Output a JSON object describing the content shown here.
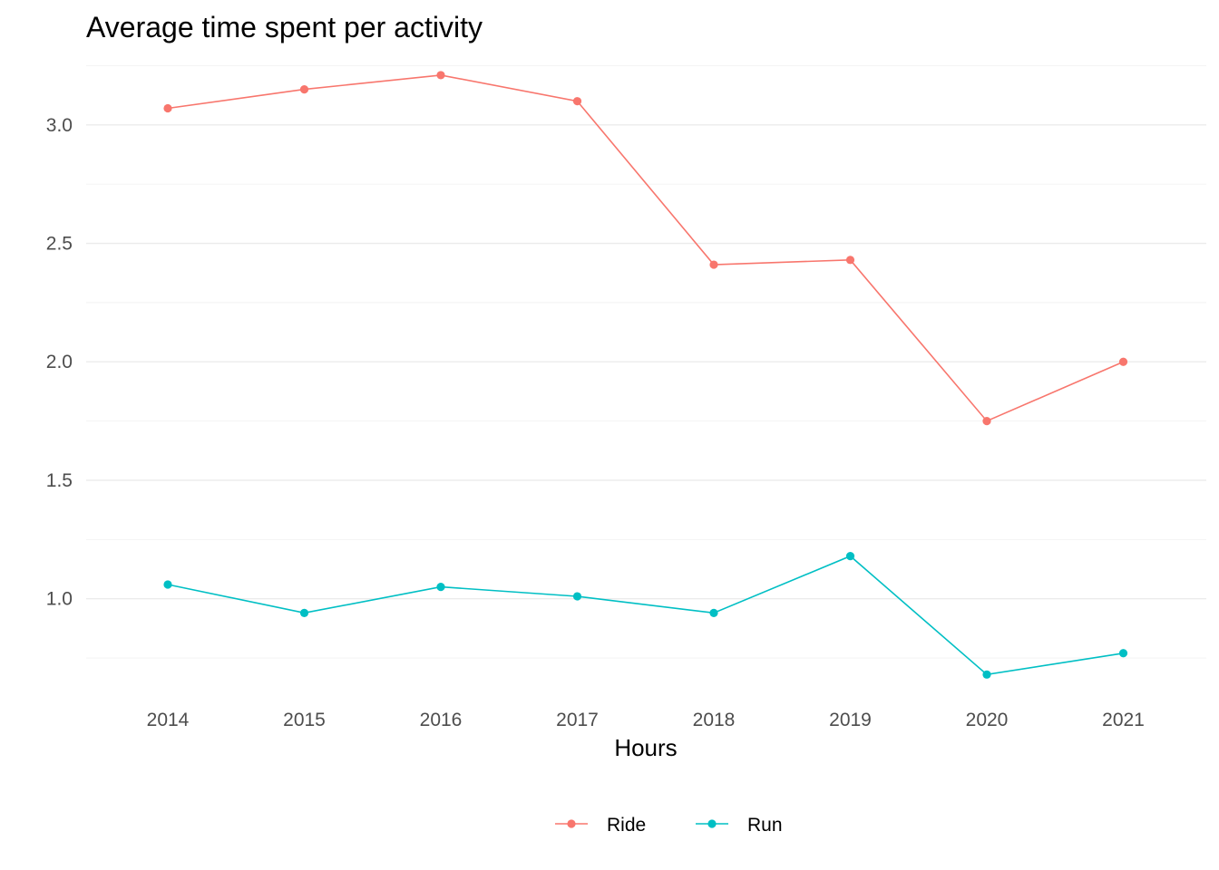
{
  "chart_data": {
    "type": "line",
    "title": "Average time spent per activity",
    "xlabel": "Hours",
    "ylabel": "",
    "x": [
      "2014",
      "2015",
      "2016",
      "2017",
      "2018",
      "2019",
      "2020",
      "2021"
    ],
    "ylim": [
      0.62,
      3.29
    ],
    "yticks": [
      1.0,
      1.5,
      2.0,
      2.5,
      3.0
    ],
    "ytick_labels": [
      "1.0",
      "1.5",
      "2.0",
      "2.5",
      "3.0"
    ],
    "grid": true,
    "legend_position": "bottom",
    "series": [
      {
        "name": "Ride",
        "color": "#F8766D",
        "values": [
          3.07,
          3.15,
          3.21,
          3.1,
          2.41,
          2.43,
          1.75,
          2.0
        ]
      },
      {
        "name": "Run",
        "color": "#00BFC4",
        "values": [
          1.06,
          0.94,
          1.05,
          1.01,
          0.94,
          1.18,
          0.68,
          0.77
        ]
      }
    ]
  }
}
